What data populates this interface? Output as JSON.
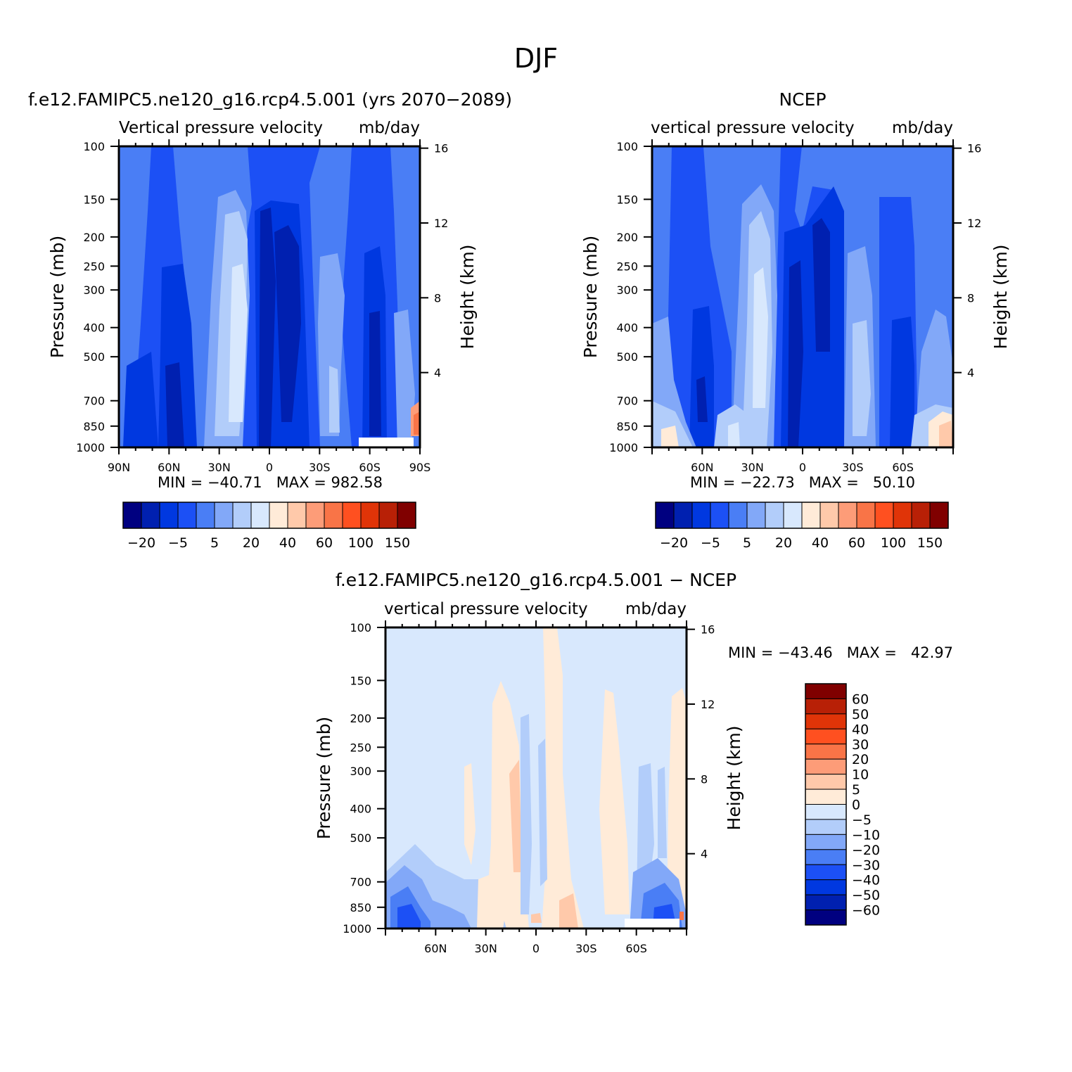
{
  "figure": {
    "title": "DJF"
  },
  "colors": {
    "scale_blue_red": [
      "#000080",
      "#0020b0",
      "#0038e0",
      "#1c50f5",
      "#4a7ef5",
      "#82a8f8",
      "#b2cdfa",
      "#d8e8fd",
      "#ffebd8",
      "#ffc9aa",
      "#fd9c78",
      "#f97447",
      "#ff5020",
      "#e03408",
      "#b82006",
      "#800000"
    ],
    "diff_scale": [
      "#800000",
      "#b82006",
      "#e03408",
      "#ff5020",
      "#f97447",
      "#fd9c78",
      "#ffc9aa",
      "#ffebd8",
      "#d8e8fd",
      "#b2cdfa",
      "#82a8f8",
      "#4a7ef5",
      "#1c50f5",
      "#0038e0",
      "#0020b0",
      "#000080"
    ]
  },
  "chart_data": [
    {
      "id": "model",
      "type": "heatmap",
      "title": "f.e12.FAMIPC5.ne120_g16.rcp4.5.001 (yrs 2070−2089)",
      "subtitle_left": "Vertical pressure velocity",
      "subtitle_right": "mb/day",
      "ylabel": "Pressure (mb)",
      "ylabel_right": "Height (km)",
      "yticks": [
        100,
        150,
        200,
        250,
        300,
        400,
        500,
        700,
        850,
        1000
      ],
      "yticks_right": [
        16,
        12,
        8,
        4
      ],
      "xticks": [
        "90N",
        "60N",
        "30N",
        "0",
        "30S",
        "60S",
        "90S"
      ],
      "xlim": [
        90,
        -90
      ],
      "ylim": [
        1000,
        100
      ],
      "y_scale": "log",
      "stats": "MIN = −40.71   MAX = 982.58",
      "colorbar_labels": [
        "−20",
        "−5",
        "5",
        "20",
        "40",
        "60",
        "100",
        "150"
      ],
      "fields": [
        {
          "lat": 85,
          "level": 700,
          "value": -5
        },
        {
          "lat": 60,
          "level": 700,
          "value": -30
        },
        {
          "lat": 30,
          "level": 400,
          "value": 20
        },
        {
          "lat": 5,
          "level": 300,
          "value": -40
        },
        {
          "lat": -30,
          "level": 400,
          "value": 15
        },
        {
          "lat": -60,
          "level": 500,
          "value": -25
        },
        {
          "lat": -88,
          "level": 900,
          "value": 60
        }
      ]
    },
    {
      "id": "ncep",
      "type": "heatmap",
      "title": "NCEP",
      "subtitle_left": "vertical pressure velocity",
      "subtitle_right": "mb/day",
      "ylabel": "Pressure (mb)",
      "ylabel_right": "Height (km)",
      "yticks": [
        100,
        150,
        200,
        250,
        300,
        400,
        500,
        700,
        850,
        1000
      ],
      "yticks_right": [
        16,
        12,
        8,
        4
      ],
      "xticks": [
        "60N",
        "30N",
        "0",
        "30S",
        "60S"
      ],
      "xlim": [
        90,
        -90
      ],
      "ylim": [
        1000,
        100
      ],
      "y_scale": "log",
      "stats": "MIN = −22.73   MAX =   50.10",
      "colorbar_labels": [
        "−20",
        "−5",
        "5",
        "20",
        "40",
        "60",
        "100",
        "150"
      ],
      "fields": [
        {
          "lat": 60,
          "level": 600,
          "value": -25
        },
        {
          "lat": 30,
          "level": 400,
          "value": 20
        },
        {
          "lat": 5,
          "level": 400,
          "value": -30
        },
        {
          "lat": -30,
          "level": 500,
          "value": 10
        },
        {
          "lat": -60,
          "level": 600,
          "value": -20
        },
        {
          "lat": -85,
          "level": 950,
          "value": 40
        }
      ]
    },
    {
      "id": "difference",
      "type": "heatmap",
      "title": "f.e12.FAMIPC5.ne120_g16.rcp4.5.001 − NCEP",
      "subtitle_left": "vertical pressure velocity",
      "subtitle_right": "mb/day",
      "ylabel": "Pressure (mb)",
      "ylabel_right": "Height (km)",
      "yticks": [
        100,
        150,
        200,
        250,
        300,
        400,
        500,
        700,
        850,
        1000
      ],
      "yticks_right": [
        16,
        12,
        8,
        4
      ],
      "xticks": [
        "60N",
        "30N",
        "0",
        "30S",
        "60S"
      ],
      "xlim": [
        90,
        -90
      ],
      "ylim": [
        1000,
        100
      ],
      "y_scale": "log",
      "stats": "MIN = −43.46   MAX =   42.97",
      "colorbar_labels": [
        "60",
        "50",
        "40",
        "30",
        "20",
        "10",
        "5",
        "0",
        "−5",
        "−10",
        "−20",
        "−30",
        "−40",
        "−50",
        "−60"
      ],
      "fields": [
        {
          "lat": 80,
          "level": 950,
          "value": -30
        },
        {
          "lat": 20,
          "level": 400,
          "value": 3
        },
        {
          "lat": -10,
          "level": 300,
          "value": 3
        },
        {
          "lat": -45,
          "level": 400,
          "value": 3
        },
        {
          "lat": -70,
          "level": 900,
          "value": -30
        }
      ]
    }
  ]
}
